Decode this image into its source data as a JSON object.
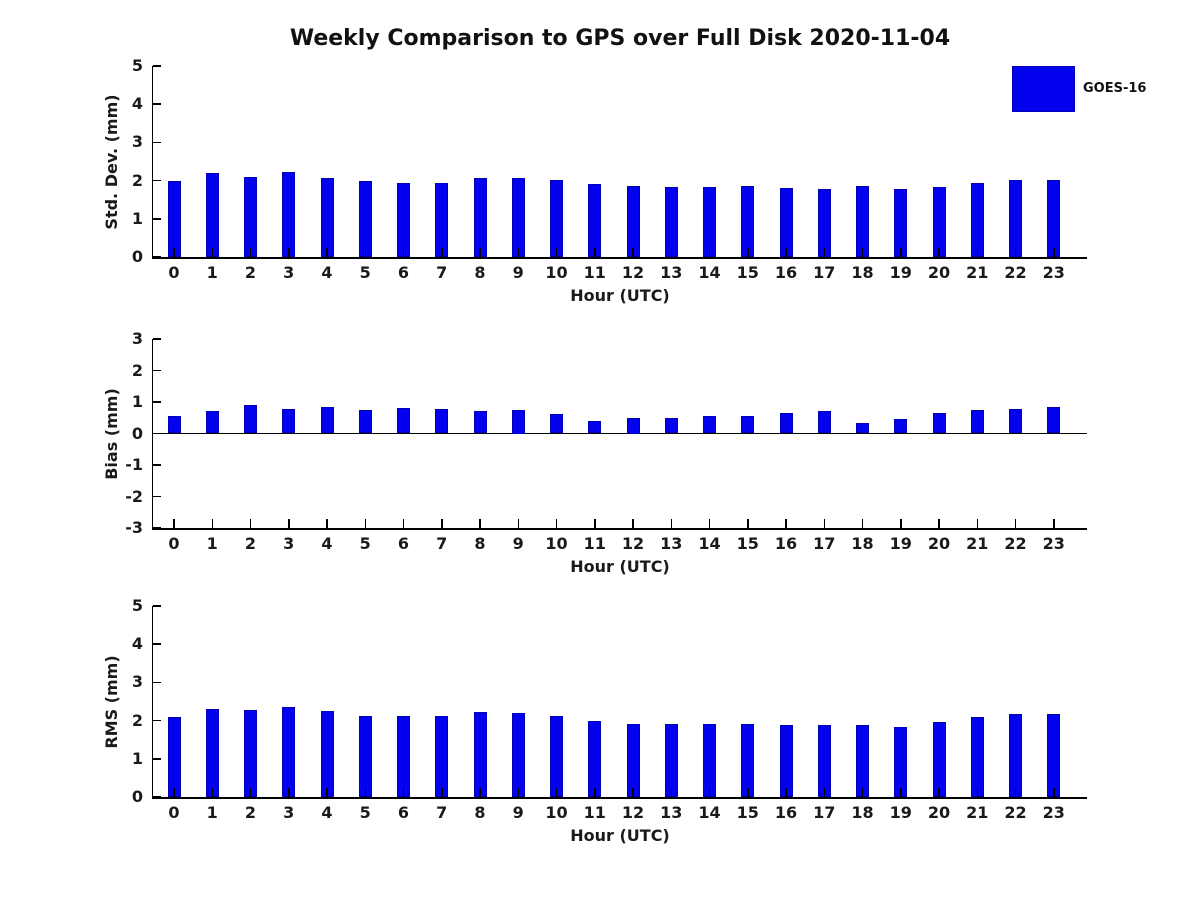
{
  "title": "Weekly Comparison to GPS over Full Disk 2020-11-04",
  "legend": {
    "label": "GOES-16",
    "swatch_color": "#0202ee"
  },
  "colors": {
    "bar_fill": "#0202ee",
    "bar_edge": "#0000b8",
    "axis": "#000000",
    "text": "#1a1a1a"
  },
  "chart_data": [
    {
      "type": "bar",
      "title": "Weekly Comparison to GPS over Full Disk 2020-11-04",
      "ylabel": "Std. Dev. (mm)",
      "xlabel": "Hour (UTC)",
      "legend": [
        "GOES-16"
      ],
      "legend_position": "upper-right-outside",
      "grid": false,
      "ylim": [
        0,
        5
      ],
      "yticks": [
        0,
        1,
        2,
        3,
        4,
        5
      ],
      "categories": [
        0,
        1,
        2,
        3,
        4,
        5,
        6,
        7,
        8,
        9,
        10,
        11,
        12,
        13,
        14,
        15,
        16,
        17,
        18,
        19,
        20,
        21,
        22,
        23
      ],
      "values": [
        1.98,
        2.19,
        2.09,
        2.23,
        2.06,
        1.98,
        1.95,
        1.94,
        2.08,
        2.06,
        2.01,
        1.9,
        1.85,
        1.84,
        1.82,
        1.86,
        1.8,
        1.77,
        1.86,
        1.77,
        1.84,
        1.93,
        2.01,
        2.01
      ]
    },
    {
      "type": "bar",
      "title": "",
      "ylabel": "Bias (mm)",
      "xlabel": "Hour (UTC)",
      "grid": false,
      "ylim": [
        -3,
        3
      ],
      "yticks": [
        -3,
        -2,
        -1,
        0,
        1,
        2,
        3
      ],
      "categories": [
        0,
        1,
        2,
        3,
        4,
        5,
        6,
        7,
        8,
        9,
        10,
        11,
        12,
        13,
        14,
        15,
        16,
        17,
        18,
        19,
        20,
        21,
        22,
        23
      ],
      "values": [
        0.55,
        0.71,
        0.91,
        0.78,
        0.84,
        0.74,
        0.8,
        0.78,
        0.71,
        0.75,
        0.62,
        0.41,
        0.5,
        0.49,
        0.55,
        0.55,
        0.64,
        0.7,
        0.33,
        0.46,
        0.65,
        0.74,
        0.77,
        0.85
      ]
    },
    {
      "type": "bar",
      "title": "",
      "ylabel": "RMS (mm)",
      "xlabel": "Hour (UTC)",
      "grid": false,
      "ylim": [
        0,
        5
      ],
      "yticks": [
        0,
        1,
        2,
        3,
        4,
        5
      ],
      "categories": [
        0,
        1,
        2,
        3,
        4,
        5,
        6,
        7,
        8,
        9,
        10,
        11,
        12,
        13,
        14,
        15,
        16,
        17,
        18,
        19,
        20,
        21,
        22,
        23
      ],
      "values": [
        2.09,
        2.31,
        2.28,
        2.36,
        2.24,
        2.13,
        2.11,
        2.12,
        2.22,
        2.21,
        2.11,
        1.98,
        1.91,
        1.92,
        1.9,
        1.92,
        1.89,
        1.89,
        1.89,
        1.82,
        1.96,
        2.09,
        2.16,
        2.17
      ]
    }
  ]
}
